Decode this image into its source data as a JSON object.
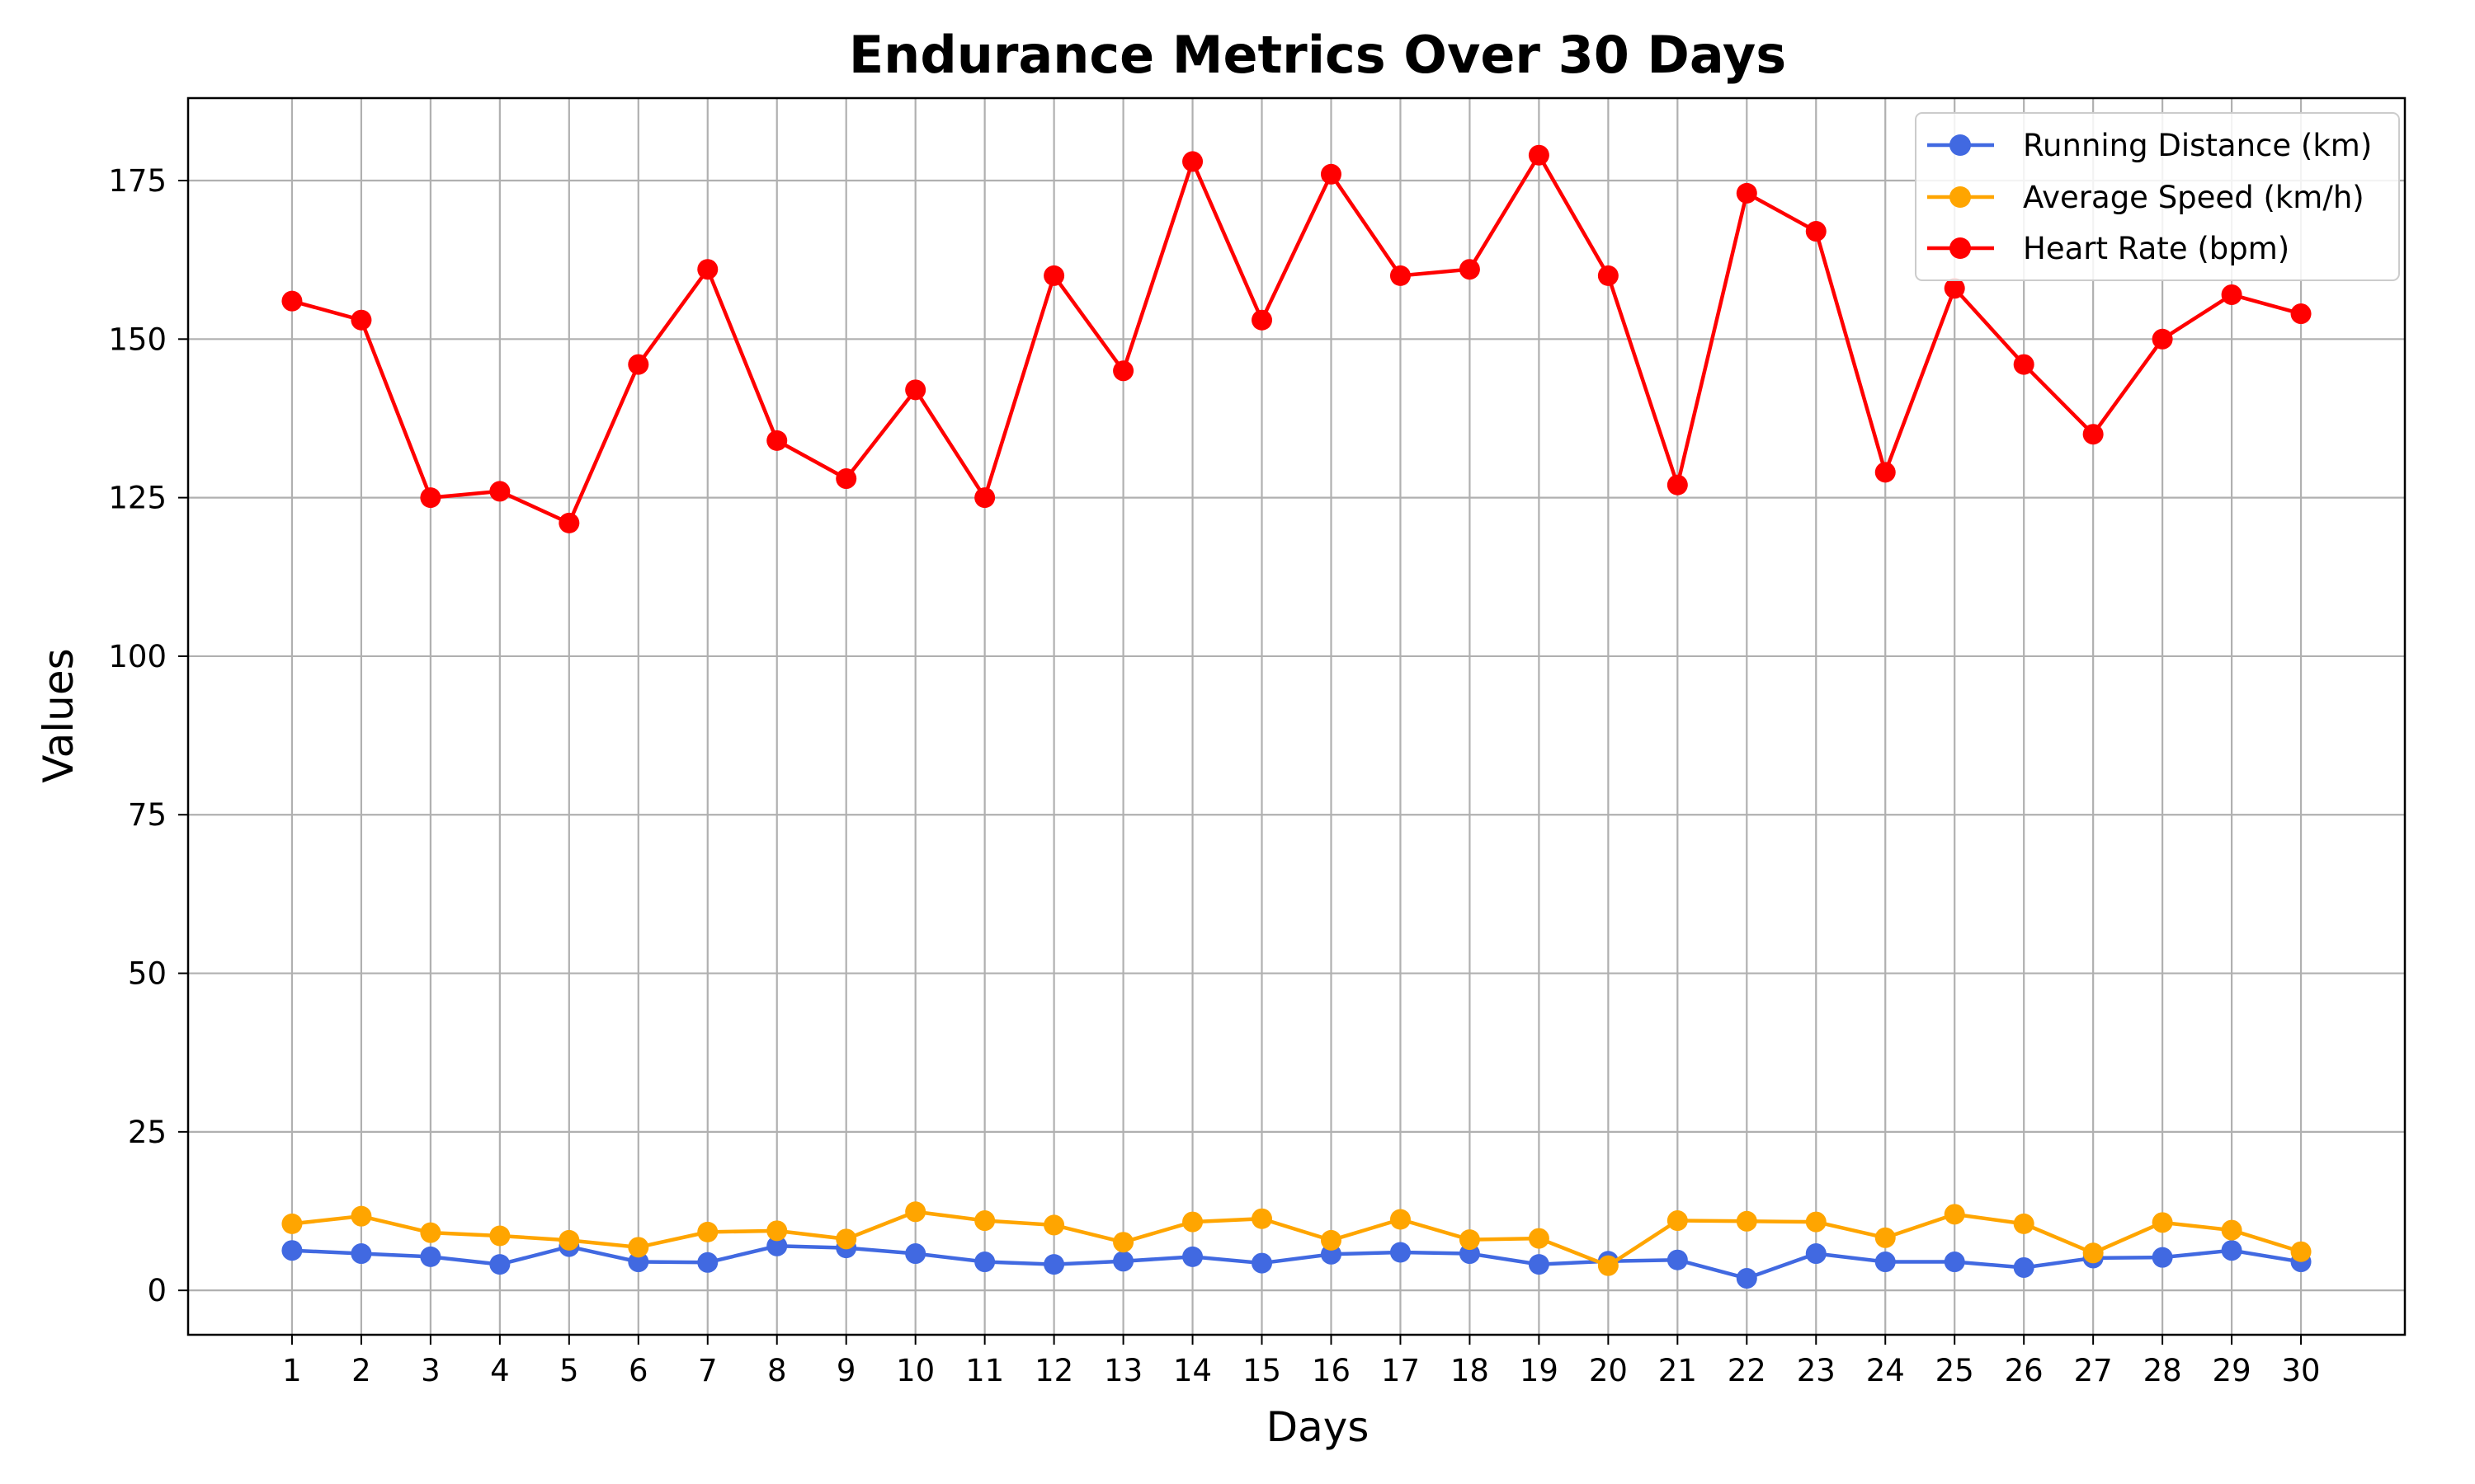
{
  "chart_data": {
    "type": "line",
    "title": "Endurance Metrics Over 30 Days",
    "xlabel": "Days",
    "ylabel": "Values",
    "x": [
      1,
      2,
      3,
      4,
      5,
      6,
      7,
      8,
      9,
      10,
      11,
      12,
      13,
      14,
      15,
      16,
      17,
      18,
      19,
      20,
      21,
      22,
      23,
      24,
      25,
      26,
      27,
      28,
      29,
      30
    ],
    "xlim": [
      -0.5,
      31.5
    ],
    "ylim": [
      -7,
      188
    ],
    "yticks": [
      0,
      25,
      50,
      75,
      100,
      125,
      150,
      175
    ],
    "grid": true,
    "legend_position": "top-right",
    "series": [
      {
        "name": "Running Distance (km)",
        "color": "#4169E1",
        "values": [
          6.3,
          5.8,
          5.3,
          4.1,
          6.9,
          4.5,
          4.4,
          7.0,
          6.7,
          5.8,
          4.5,
          4.1,
          4.6,
          5.3,
          4.3,
          5.7,
          6.0,
          5.8,
          4.1,
          4.6,
          4.8,
          1.9,
          5.8,
          4.5,
          4.5,
          3.6,
          5.1,
          5.2,
          6.3,
          4.5
        ]
      },
      {
        "name": "Average Speed (km/h)",
        "color": "#FFA500",
        "values": [
          10.5,
          11.7,
          9.1,
          8.6,
          7.9,
          6.8,
          9.2,
          9.4,
          8.1,
          12.4,
          11.0,
          10.3,
          7.6,
          10.8,
          11.3,
          7.9,
          11.2,
          8.0,
          8.2,
          3.9,
          11.0,
          10.9,
          10.8,
          8.3,
          12.0,
          10.5,
          5.9,
          10.7,
          9.5,
          6.1
        ]
      },
      {
        "name": "Heart Rate (bpm)",
        "color": "#FF0000",
        "values": [
          156,
          153,
          125,
          126,
          121,
          146,
          161,
          134,
          128,
          142,
          125,
          160,
          145,
          178,
          153,
          176,
          160,
          161,
          179,
          160,
          127,
          173,
          167,
          129,
          158,
          146,
          135,
          150,
          157,
          154
        ]
      }
    ]
  }
}
